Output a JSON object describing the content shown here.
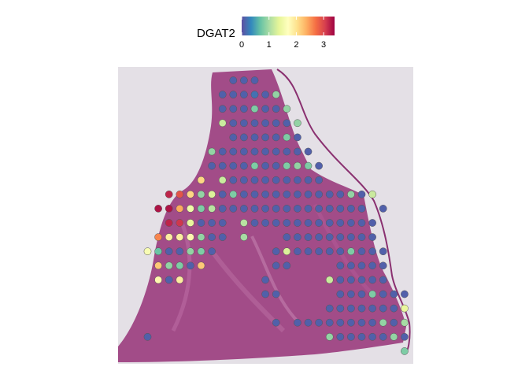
{
  "legend": {
    "title": "DGAT2",
    "ticks": [
      "0",
      "1",
      "2",
      "3"
    ],
    "tick_values": [
      0,
      1,
      2,
      3
    ],
    "max_value": 3.4,
    "colors": [
      "#5e4fa2",
      "#3288bd",
      "#66c2a5",
      "#abdda4",
      "#e6f598",
      "#ffffbf",
      "#fee08b",
      "#fdae61",
      "#f46d43",
      "#d53e4f",
      "#9e0142"
    ]
  },
  "image": {
    "background": "#e4e0e6",
    "tissue_color": "#a24c88",
    "spot_outline": "#555555"
  },
  "spots": [
    {
      "c": 8,
      "r": 0,
      "v": 0.1
    },
    {
      "c": 9,
      "r": 0,
      "v": 0.1
    },
    {
      "c": 10,
      "r": 0,
      "v": 0.1
    },
    {
      "c": 7,
      "r": 1,
      "v": 0.1
    },
    {
      "c": 8,
      "r": 1,
      "v": 0.1
    },
    {
      "c": 9,
      "r": 1,
      "v": 0.1
    },
    {
      "c": 10,
      "r": 1,
      "v": 0.2
    },
    {
      "c": 11,
      "r": 1,
      "v": 0.1
    },
    {
      "c": 12,
      "r": 1,
      "v": 0.9
    },
    {
      "c": 7,
      "r": 2,
      "v": 0.1
    },
    {
      "c": 8,
      "r": 2,
      "v": 0.1
    },
    {
      "c": 9,
      "r": 2,
      "v": 0.1
    },
    {
      "c": 10,
      "r": 2,
      "v": 0.8
    },
    {
      "c": 11,
      "r": 2,
      "v": 0.1
    },
    {
      "c": 12,
      "r": 2,
      "v": 0.1
    },
    {
      "c": 13,
      "r": 2,
      "v": 0.9
    },
    {
      "c": 7,
      "r": 3,
      "v": 1.2
    },
    {
      "c": 8,
      "r": 3,
      "v": 0.1
    },
    {
      "c": 9,
      "r": 3,
      "v": 0.1
    },
    {
      "c": 10,
      "r": 3,
      "v": 0.1
    },
    {
      "c": 11,
      "r": 3,
      "v": 0.1
    },
    {
      "c": 12,
      "r": 3,
      "v": 0.1
    },
    {
      "c": 13,
      "r": 3,
      "v": 0.1
    },
    {
      "c": 14,
      "r": 3,
      "v": 0.9
    },
    {
      "c": 8,
      "r": 4,
      "v": 0.1
    },
    {
      "c": 9,
      "r": 4,
      "v": 0.1
    },
    {
      "c": 10,
      "r": 4,
      "v": 0.1
    },
    {
      "c": 11,
      "r": 4,
      "v": 0.1
    },
    {
      "c": 12,
      "r": 4,
      "v": 0.1
    },
    {
      "c": 13,
      "r": 4,
      "v": 0.8
    },
    {
      "c": 14,
      "r": 4,
      "v": 0.1
    },
    {
      "c": 6,
      "r": 5,
      "v": 0.9
    },
    {
      "c": 7,
      "r": 5,
      "v": 0.1
    },
    {
      "c": 8,
      "r": 5,
      "v": 0.1
    },
    {
      "c": 9,
      "r": 5,
      "v": 0.1
    },
    {
      "c": 10,
      "r": 5,
      "v": 0.1
    },
    {
      "c": 11,
      "r": 5,
      "v": 0.1
    },
    {
      "c": 12,
      "r": 5,
      "v": 0.1
    },
    {
      "c": 13,
      "r": 5,
      "v": 0.1
    },
    {
      "c": 14,
      "r": 5,
      "v": 0.1
    },
    {
      "c": 15,
      "r": 5,
      "v": 0.1
    },
    {
      "c": 6,
      "r": 6,
      "v": 0.1
    },
    {
      "c": 7,
      "r": 6,
      "v": 0.1
    },
    {
      "c": 8,
      "r": 6,
      "v": 0.1
    },
    {
      "c": 9,
      "r": 6,
      "v": 0.1
    },
    {
      "c": 10,
      "r": 6,
      "v": 0.8
    },
    {
      "c": 11,
      "r": 6,
      "v": 0.1
    },
    {
      "c": 12,
      "r": 6,
      "v": 0.1
    },
    {
      "c": 13,
      "r": 6,
      "v": 0.8
    },
    {
      "c": 14,
      "r": 6,
      "v": 0.9
    },
    {
      "c": 15,
      "r": 6,
      "v": 0.8
    },
    {
      "c": 16,
      "r": 6,
      "v": 0.1
    },
    {
      "c": 5,
      "r": 7,
      "v": 2.1
    },
    {
      "c": 7,
      "r": 7,
      "v": 1.2
    },
    {
      "c": 8,
      "r": 7,
      "v": 0.1
    },
    {
      "c": 9,
      "r": 7,
      "v": 0.1
    },
    {
      "c": 10,
      "r": 7,
      "v": 0.1
    },
    {
      "c": 11,
      "r": 7,
      "v": 0.1
    },
    {
      "c": 12,
      "r": 7,
      "v": 0.1
    },
    {
      "c": 13,
      "r": 7,
      "v": 0.1
    },
    {
      "c": 14,
      "r": 7,
      "v": 0.1
    },
    {
      "c": 15,
      "r": 7,
      "v": 0.1
    },
    {
      "c": 16,
      "r": 7,
      "v": 0.1
    },
    {
      "c": 2,
      "r": 8,
      "v": 3.2
    },
    {
      "c": 3,
      "r": 8,
      "v": 2.9
    },
    {
      "c": 4,
      "r": 8,
      "v": 2.1
    },
    {
      "c": 5,
      "r": 8,
      "v": 0.9
    },
    {
      "c": 6,
      "r": 8,
      "v": 1.3
    },
    {
      "c": 7,
      "r": 8,
      "v": 0.1
    },
    {
      "c": 8,
      "r": 8,
      "v": 0.8
    },
    {
      "c": 9,
      "r": 8,
      "v": 0.1
    },
    {
      "c": 10,
      "r": 8,
      "v": 0.1
    },
    {
      "c": 11,
      "r": 8,
      "v": 0.1
    },
    {
      "c": 12,
      "r": 8,
      "v": 0.1
    },
    {
      "c": 13,
      "r": 8,
      "v": 0.1
    },
    {
      "c": 14,
      "r": 8,
      "v": 0.1
    },
    {
      "c": 15,
      "r": 8,
      "v": 0.1
    },
    {
      "c": 16,
      "r": 8,
      "v": 0.1
    },
    {
      "c": 17,
      "r": 8,
      "v": 0.1
    },
    {
      "c": 18,
      "r": 8,
      "v": 0.1
    },
    {
      "c": 19,
      "r": 8,
      "v": 0.9
    },
    {
      "c": 20,
      "r": 8,
      "v": 0.1
    },
    {
      "c": 21,
      "r": 8,
      "v": 1.2
    },
    {
      "c": 1,
      "r": 9,
      "v": 3.3
    },
    {
      "c": 2,
      "r": 9,
      "v": 3.3
    },
    {
      "c": 3,
      "r": 9,
      "v": 2.4
    },
    {
      "c": 4,
      "r": 9,
      "v": 1.5
    },
    {
      "c": 5,
      "r": 9,
      "v": 0.8
    },
    {
      "c": 6,
      "r": 9,
      "v": 1.1
    },
    {
      "c": 7,
      "r": 9,
      "v": 0.1
    },
    {
      "c": 8,
      "r": 9,
      "v": 0.1
    },
    {
      "c": 9,
      "r": 9,
      "v": 0.1
    },
    {
      "c": 10,
      "r": 9,
      "v": 0.1
    },
    {
      "c": 11,
      "r": 9,
      "v": 0.1
    },
    {
      "c": 12,
      "r": 9,
      "v": 0.1
    },
    {
      "c": 13,
      "r": 9,
      "v": 0.1
    },
    {
      "c": 14,
      "r": 9,
      "v": 0.1
    },
    {
      "c": 15,
      "r": 9,
      "v": 0.1
    },
    {
      "c": 16,
      "r": 9,
      "v": 0.1
    },
    {
      "c": 17,
      "r": 9,
      "v": 0.1
    },
    {
      "c": 18,
      "r": 9,
      "v": 0.1
    },
    {
      "c": 19,
      "r": 9,
      "v": 0.1
    },
    {
      "c": 20,
      "r": 9,
      "v": 0.1
    },
    {
      "c": 22,
      "r": 9,
      "v": 0.1
    },
    {
      "c": 2,
      "r": 10,
      "v": 3.2
    },
    {
      "c": 3,
      "r": 10,
      "v": 3.1
    },
    {
      "c": 4,
      "r": 10,
      "v": 1.4
    },
    {
      "c": 5,
      "r": 10,
      "v": 0.1
    },
    {
      "c": 6,
      "r": 10,
      "v": 0.1
    },
    {
      "c": 7,
      "r": 10,
      "v": 0.1
    },
    {
      "c": 9,
      "r": 10,
      "v": 1.1
    },
    {
      "c": 10,
      "r": 10,
      "v": 0.1
    },
    {
      "c": 11,
      "r": 10,
      "v": 0.1
    },
    {
      "c": 12,
      "r": 10,
      "v": 0.1
    },
    {
      "c": 13,
      "r": 10,
      "v": 0.1
    },
    {
      "c": 14,
      "r": 10,
      "v": 0.1
    },
    {
      "c": 15,
      "r": 10,
      "v": 0.1
    },
    {
      "c": 16,
      "r": 10,
      "v": 0.1
    },
    {
      "c": 17,
      "r": 10,
      "v": 0.1
    },
    {
      "c": 18,
      "r": 10,
      "v": 0.1
    },
    {
      "c": 19,
      "r": 10,
      "v": 0.1
    },
    {
      "c": 20,
      "r": 10,
      "v": 0.1
    },
    {
      "c": 21,
      "r": 10,
      "v": 0.1
    },
    {
      "c": 1,
      "r": 11,
      "v": 2.6
    },
    {
      "c": 2,
      "r": 11,
      "v": 1.9
    },
    {
      "c": 3,
      "r": 11,
      "v": 1.9
    },
    {
      "c": 4,
      "r": 11,
      "v": 1.8
    },
    {
      "c": 5,
      "r": 11,
      "v": 0.9
    },
    {
      "c": 6,
      "r": 11,
      "v": 0.1
    },
    {
      "c": 7,
      "r": 11,
      "v": 0.1
    },
    {
      "c": 9,
      "r": 11,
      "v": 1.0
    },
    {
      "c": 13,
      "r": 11,
      "v": 0.1
    },
    {
      "c": 14,
      "r": 11,
      "v": 0.1
    },
    {
      "c": 15,
      "r": 11,
      "v": 0.1
    },
    {
      "c": 16,
      "r": 11,
      "v": 0.1
    },
    {
      "c": 17,
      "r": 11,
      "v": 0.1
    },
    {
      "c": 18,
      "r": 11,
      "v": 0.1
    },
    {
      "c": 19,
      "r": 11,
      "v": 0.1
    },
    {
      "c": 20,
      "r": 11,
      "v": 0.1
    },
    {
      "c": 21,
      "r": 11,
      "v": 0.1
    },
    {
      "c": 0,
      "r": 12,
      "v": 1.6
    },
    {
      "c": 1,
      "r": 12,
      "v": 0.7
    },
    {
      "c": 2,
      "r": 12,
      "v": 0.1
    },
    {
      "c": 3,
      "r": 12,
      "v": 0.1
    },
    {
      "c": 4,
      "r": 12,
      "v": 0.9
    },
    {
      "c": 5,
      "r": 12,
      "v": 0.8
    },
    {
      "c": 6,
      "r": 12,
      "v": 0.1
    },
    {
      "c": 12,
      "r": 12,
      "v": 0.1
    },
    {
      "c": 13,
      "r": 12,
      "v": 1.3
    },
    {
      "c": 14,
      "r": 12,
      "v": 0.1
    },
    {
      "c": 15,
      "r": 12,
      "v": 0.1
    },
    {
      "c": 16,
      "r": 12,
      "v": 0.1
    },
    {
      "c": 17,
      "r": 12,
      "v": 0.1
    },
    {
      "c": 18,
      "r": 12,
      "v": 0.1
    },
    {
      "c": 19,
      "r": 12,
      "v": 0.8
    },
    {
      "c": 20,
      "r": 12,
      "v": 0.1
    },
    {
      "c": 21,
      "r": 12,
      "v": 0.1
    },
    {
      "c": 22,
      "r": 12,
      "v": 0.1
    },
    {
      "c": 1,
      "r": 13,
      "v": 2.2
    },
    {
      "c": 2,
      "r": 13,
      "v": 0.9
    },
    {
      "c": 3,
      "r": 13,
      "v": 0.8
    },
    {
      "c": 4,
      "r": 13,
      "v": 0.1
    },
    {
      "c": 5,
      "r": 13,
      "v": 2.2
    },
    {
      "c": 12,
      "r": 13,
      "v": 0.1
    },
    {
      "c": 13,
      "r": 13,
      "v": 0.1
    },
    {
      "c": 18,
      "r": 13,
      "v": 0.1
    },
    {
      "c": 19,
      "r": 13,
      "v": 0.1
    },
    {
      "c": 20,
      "r": 13,
      "v": 0.1
    },
    {
      "c": 21,
      "r": 13,
      "v": 0.1
    },
    {
      "c": 22,
      "r": 13,
      "v": 0.1
    },
    {
      "c": 1,
      "r": 14,
      "v": 1.8
    },
    {
      "c": 2,
      "r": 14,
      "v": 0.1
    },
    {
      "c": 3,
      "r": 14,
      "v": 1.9
    },
    {
      "c": 11,
      "r": 14,
      "v": 0.1
    },
    {
      "c": 17,
      "r": 14,
      "v": 1.2
    },
    {
      "c": 18,
      "r": 14,
      "v": 0.1
    },
    {
      "c": 19,
      "r": 14,
      "v": 0.1
    },
    {
      "c": 20,
      "r": 14,
      "v": 0.1
    },
    {
      "c": 21,
      "r": 14,
      "v": 0.1
    },
    {
      "c": 22,
      "r": 14,
      "v": 0.1
    },
    {
      "c": 11,
      "r": 15,
      "v": 0.1
    },
    {
      "c": 12,
      "r": 15,
      "v": 0.1
    },
    {
      "c": 18,
      "r": 15,
      "v": 0.1
    },
    {
      "c": 19,
      "r": 15,
      "v": 0.1
    },
    {
      "c": 20,
      "r": 15,
      "v": 0.1
    },
    {
      "c": 21,
      "r": 15,
      "v": 0.8
    },
    {
      "c": 22,
      "r": 15,
      "v": 0.1
    },
    {
      "c": 23,
      "r": 15,
      "v": 0.1
    },
    {
      "c": 24,
      "r": 15,
      "v": 0.1
    },
    {
      "c": 17,
      "r": 16,
      "v": 0.1
    },
    {
      "c": 18,
      "r": 16,
      "v": 0.1
    },
    {
      "c": 19,
      "r": 16,
      "v": 0.1
    },
    {
      "c": 20,
      "r": 16,
      "v": 0.1
    },
    {
      "c": 21,
      "r": 16,
      "v": 0.1
    },
    {
      "c": 22,
      "r": 16,
      "v": 0.1
    },
    {
      "c": 23,
      "r": 16,
      "v": 0.1
    },
    {
      "c": 24,
      "r": 16,
      "v": 1.4
    },
    {
      "c": 12,
      "r": 17,
      "v": 0.1
    },
    {
      "c": 14,
      "r": 17,
      "v": 0.1
    },
    {
      "c": 15,
      "r": 17,
      "v": 0.1
    },
    {
      "c": 16,
      "r": 17,
      "v": 0.1
    },
    {
      "c": 17,
      "r": 17,
      "v": 0.1
    },
    {
      "c": 18,
      "r": 17,
      "v": 0.1
    },
    {
      "c": 19,
      "r": 17,
      "v": 0.1
    },
    {
      "c": 20,
      "r": 17,
      "v": 0.1
    },
    {
      "c": 21,
      "r": 17,
      "v": 0.1
    },
    {
      "c": 22,
      "r": 17,
      "v": 0.9
    },
    {
      "c": 23,
      "r": 17,
      "v": 0.1
    },
    {
      "c": 24,
      "r": 17,
      "v": 1.0
    },
    {
      "c": 0,
      "r": 18,
      "v": 0.1
    },
    {
      "c": 17,
      "r": 18,
      "v": 0.9
    },
    {
      "c": 18,
      "r": 18,
      "v": 0.1
    },
    {
      "c": 19,
      "r": 18,
      "v": 0.1
    },
    {
      "c": 20,
      "r": 18,
      "v": 0.1
    },
    {
      "c": 21,
      "r": 18,
      "v": 0.1
    },
    {
      "c": 22,
      "r": 18,
      "v": 0.1
    },
    {
      "c": 23,
      "r": 18,
      "v": 0.9
    },
    {
      "c": 24,
      "r": 18,
      "v": 0.1
    },
    {
      "c": 24,
      "r": 19,
      "v": 0.8
    }
  ]
}
